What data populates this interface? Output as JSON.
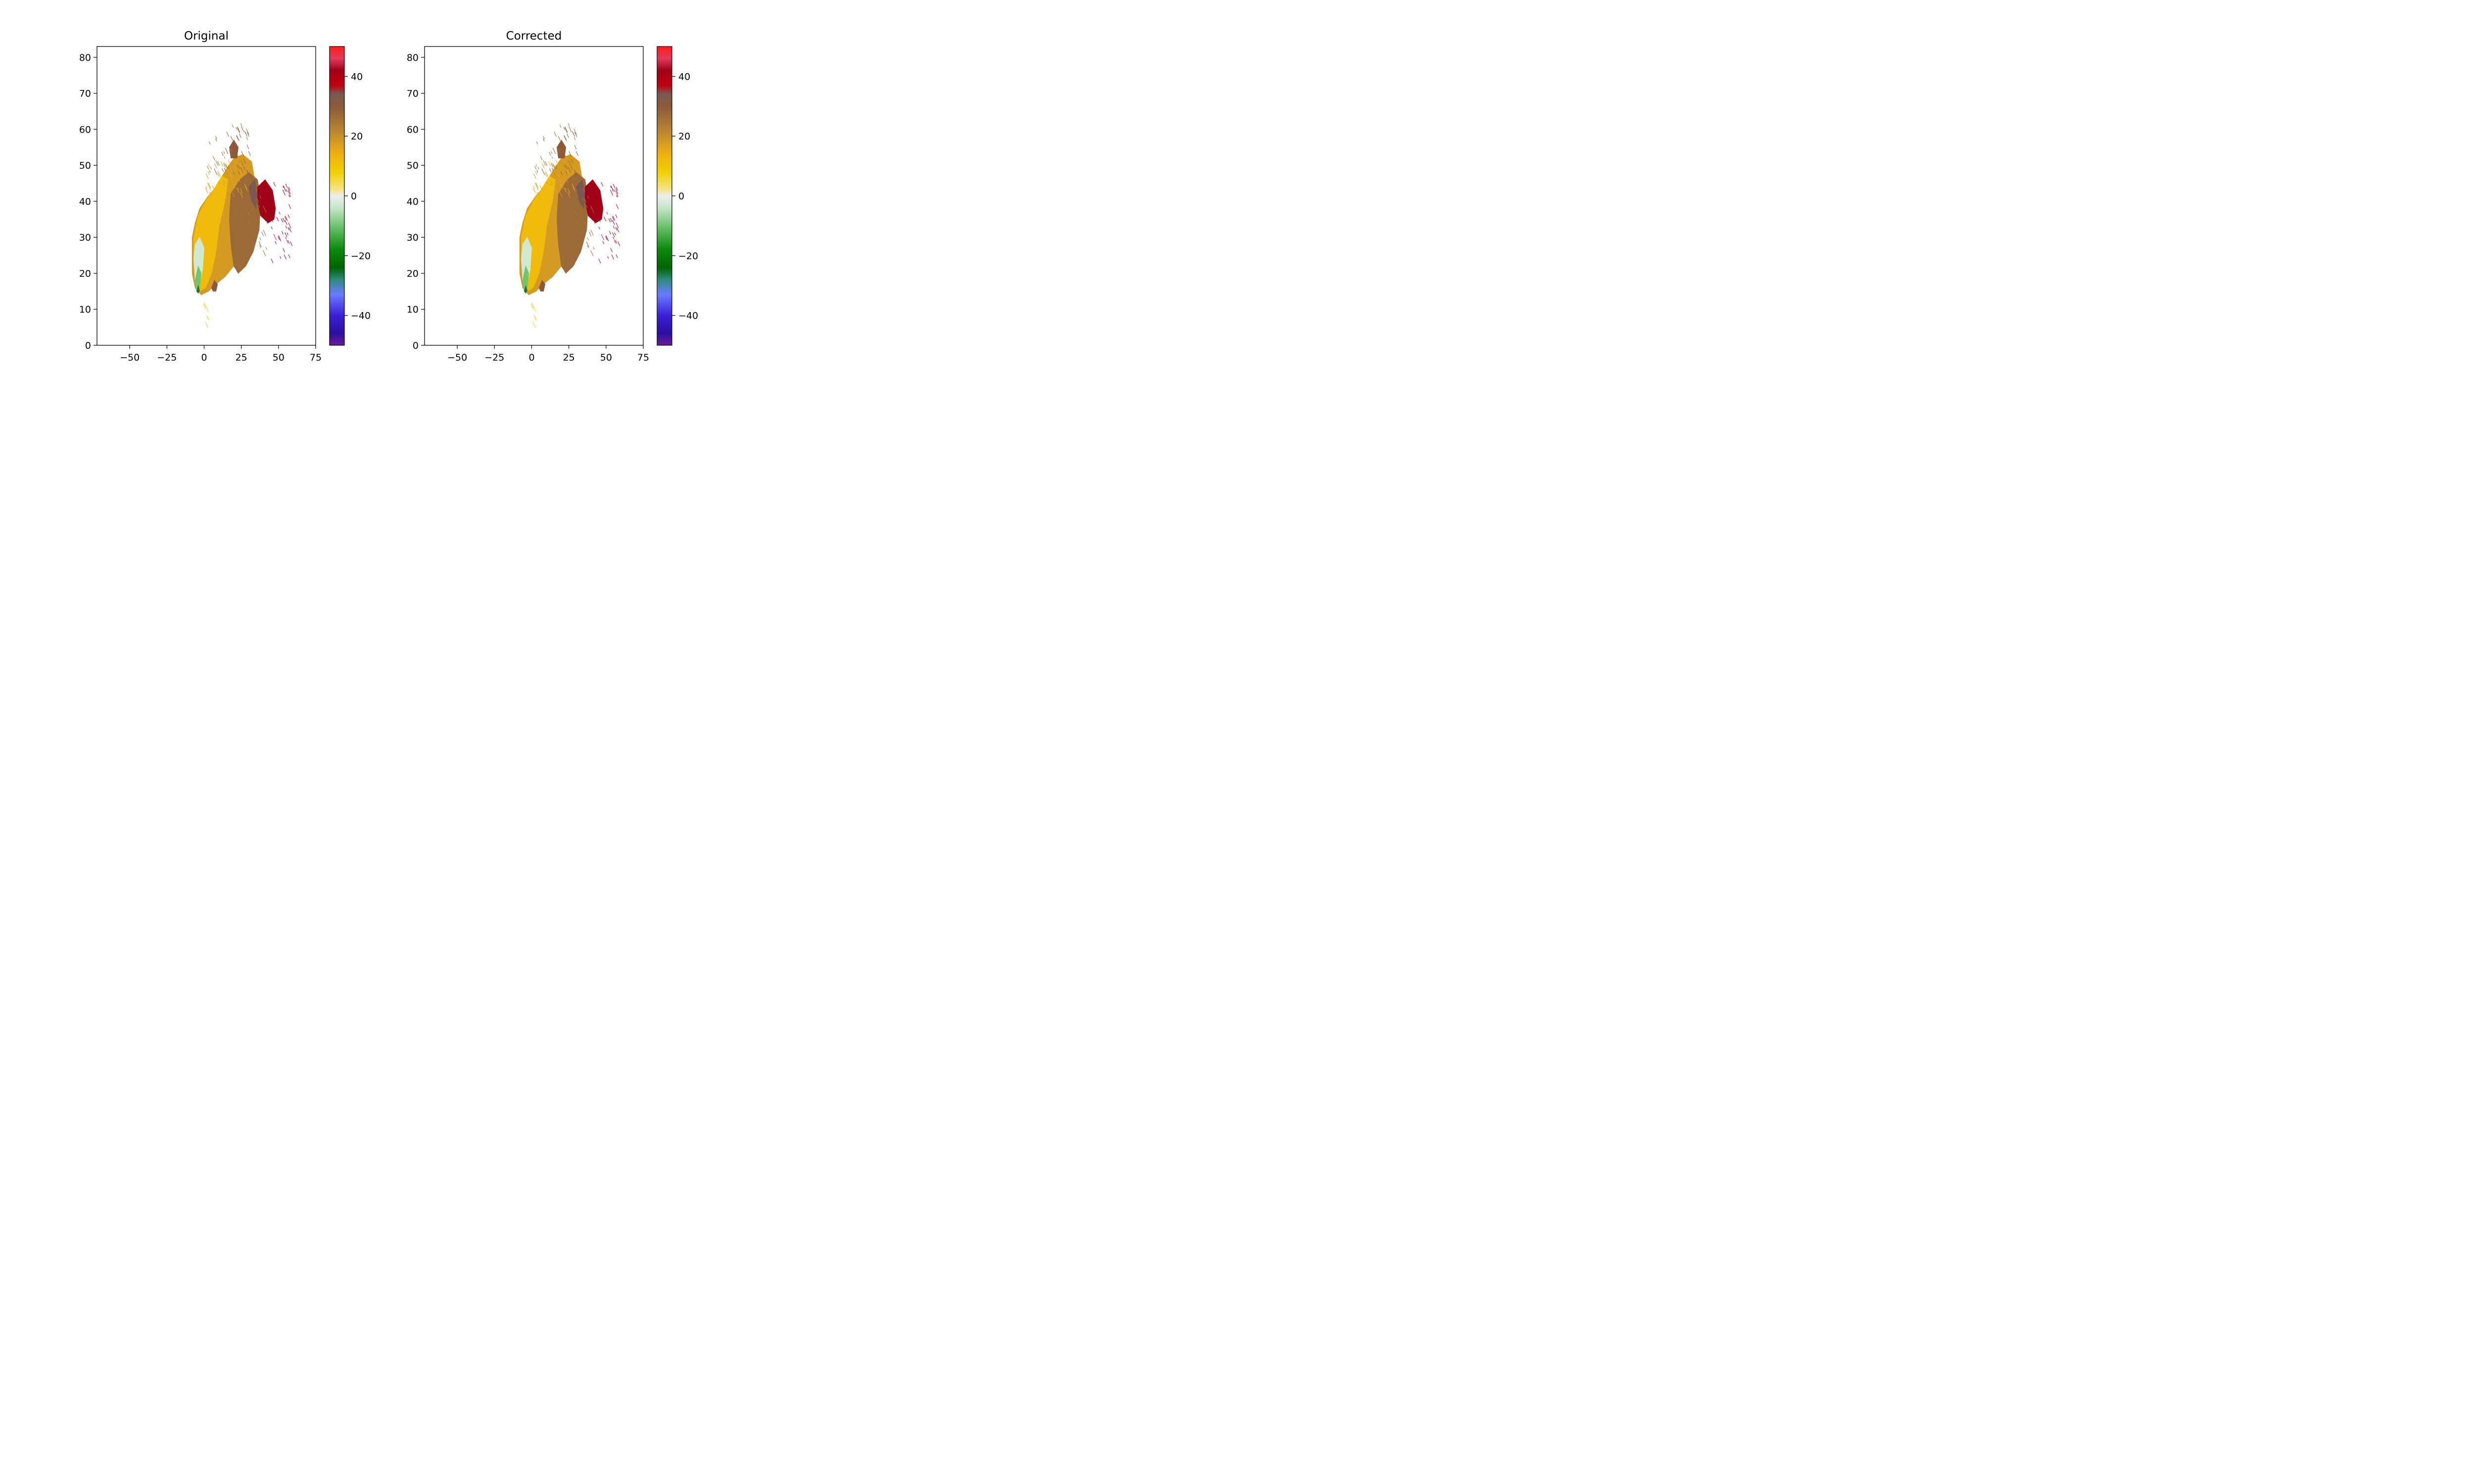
{
  "chart_data": [
    {
      "type": "heatmap",
      "title": "Original",
      "xlabel": "",
      "ylabel": "",
      "xlim": [
        -72,
        75
      ],
      "ylim": [
        0,
        83
      ],
      "xticks": [
        -50,
        -25,
        0,
        25,
        50,
        75
      ],
      "xtick_labels": [
        "−50",
        "−25",
        "0",
        "25",
        "50",
        "75"
      ],
      "yticks": [
        0,
        10,
        20,
        30,
        40,
        50,
        60,
        70,
        80
      ],
      "ytick_labels": [
        "0",
        "10",
        "20",
        "30",
        "40",
        "50",
        "60",
        "70",
        "80"
      ],
      "grid": false,
      "colorbar": {
        "range": [
          -50,
          50
        ],
        "ticks": [
          40,
          20,
          0,
          -20,
          -40
        ],
        "tick_labels": [
          "40",
          "20",
          "0",
          "−20",
          "−40"
        ]
      },
      "regions": [
        {
          "value": 18,
          "polygon": [
            [
              -8,
              30
            ],
            [
              -6,
              34
            ],
            [
              -3,
              38
            ],
            [
              2,
              41
            ],
            [
              8,
              44
            ],
            [
              15,
              49
            ],
            [
              20,
              52
            ],
            [
              26,
              53
            ],
            [
              32,
              51
            ],
            [
              34,
              46
            ],
            [
              32,
              40
            ],
            [
              28,
              33
            ],
            [
              25,
              28
            ],
            [
              20,
              22
            ],
            [
              14,
              19
            ],
            [
              8,
              17
            ],
            [
              3,
              15
            ],
            [
              -2,
              14
            ],
            [
              -6,
              16
            ],
            [
              -8,
              20
            ],
            [
              -8,
              26
            ]
          ]
        },
        {
          "value": 12,
          "polygon": [
            [
              -7,
              30
            ],
            [
              -4,
              36
            ],
            [
              1,
              40
            ],
            [
              6,
              43
            ],
            [
              12,
              47
            ],
            [
              16,
              46
            ],
            [
              14,
              40
            ],
            [
              10,
              33
            ],
            [
              8,
              26
            ],
            [
              5,
              20
            ],
            [
              1,
              16
            ],
            [
              -3,
              15
            ],
            [
              -6,
              18
            ],
            [
              -7,
              24
            ]
          ]
        },
        {
          "value": 27,
          "polygon": [
            [
              18,
              42
            ],
            [
              24,
              46
            ],
            [
              30,
              48
            ],
            [
              36,
              46
            ],
            [
              38,
              40
            ],
            [
              37,
              32
            ],
            [
              33,
              26
            ],
            [
              28,
              22
            ],
            [
              23,
              20
            ],
            [
              20,
              22
            ],
            [
              18,
              28
            ],
            [
              17,
              35
            ]
          ]
        },
        {
          "value": 34,
          "polygon": [
            [
              30,
              44
            ],
            [
              34,
              46
            ],
            [
              36,
              42
            ],
            [
              35,
              38
            ],
            [
              32,
              40
            ]
          ]
        },
        {
          "value": 42,
          "polygon": [
            [
              36,
              44
            ],
            [
              41,
              46
            ],
            [
              46,
              43
            ],
            [
              48,
              38
            ],
            [
              47,
              35
            ],
            [
              43,
              34
            ],
            [
              38,
              36
            ],
            [
              36,
              40
            ]
          ]
        },
        {
          "value": -3,
          "polygon": [
            [
              -7,
              24
            ],
            [
              -6,
              28
            ],
            [
              -3,
              30
            ],
            [
              0,
              27
            ],
            [
              -1,
              21
            ],
            [
              -3,
              17
            ],
            [
              -6,
              18
            ]
          ]
        },
        {
          "value": -10,
          "polygon": [
            [
              -6,
              18
            ],
            [
              -4,
              22
            ],
            [
              -2,
              20
            ],
            [
              -3,
              16
            ],
            [
              -5,
              15
            ]
          ]
        },
        {
          "value": -26,
          "polygon": [
            [
              -5,
              15
            ],
            [
              -4,
              16.5
            ],
            [
              -3,
              15.2
            ],
            [
              -4,
              14.5
            ]
          ]
        },
        {
          "value": 30,
          "polygon": [
            [
              17,
              55
            ],
            [
              20,
              57
            ],
            [
              23,
              55
            ],
            [
              22,
              52
            ],
            [
              18,
              52
            ]
          ]
        },
        {
          "value": 30,
          "polygon": [
            [
              5,
              16
            ],
            [
              7,
              18
            ],
            [
              9,
              17
            ],
            [
              8,
              15
            ],
            [
              6,
              15
            ]
          ]
        }
      ],
      "streaks": [
        {
          "value": 42,
          "x": [
            44,
            58
          ],
          "y": [
            24,
            46
          ],
          "count": 45
        },
        {
          "value": 28,
          "x": [
            2,
            30
          ],
          "y": [
            48,
            62
          ],
          "count": 55
        },
        {
          "value": 16,
          "x": [
            0,
            28
          ],
          "y": [
            42,
            52
          ],
          "count": 50
        },
        {
          "value": 26,
          "x": [
            28,
            42
          ],
          "y": [
            26,
            44
          ],
          "count": 30
        },
        {
          "value": 6,
          "x": [
            -2,
            4
          ],
          "y": [
            2,
            12
          ],
          "count": 8
        }
      ]
    },
    {
      "type": "heatmap",
      "title": "Corrected",
      "xlabel": "",
      "ylabel": "",
      "xlim": [
        -72,
        75
      ],
      "ylim": [
        0,
        83
      ],
      "xticks": [
        -50,
        -25,
        0,
        25,
        50,
        75
      ],
      "xtick_labels": [
        "−50",
        "−25",
        "0",
        "25",
        "50",
        "75"
      ],
      "yticks": [
        0,
        10,
        20,
        30,
        40,
        50,
        60,
        70,
        80
      ],
      "ytick_labels": [
        "0",
        "10",
        "20",
        "30",
        "40",
        "50",
        "60",
        "70",
        "80"
      ],
      "grid": false,
      "colorbar": {
        "range": [
          -50,
          50
        ],
        "ticks": [
          40,
          20,
          0,
          -20,
          -40
        ],
        "tick_labels": [
          "40",
          "20",
          "0",
          "−20",
          "−40"
        ]
      },
      "regions": [
        {
          "value": 18,
          "polygon": [
            [
              -8,
              30
            ],
            [
              -6,
              34
            ],
            [
              -3,
              38
            ],
            [
              2,
              41
            ],
            [
              8,
              44
            ],
            [
              15,
              49
            ],
            [
              20,
              52
            ],
            [
              26,
              53
            ],
            [
              32,
              51
            ],
            [
              34,
              46
            ],
            [
              32,
              40
            ],
            [
              28,
              33
            ],
            [
              25,
              28
            ],
            [
              20,
              22
            ],
            [
              14,
              19
            ],
            [
              8,
              17
            ],
            [
              3,
              15
            ],
            [
              -2,
              14
            ],
            [
              -6,
              16
            ],
            [
              -8,
              20
            ],
            [
              -8,
              26
            ]
          ]
        },
        {
          "value": 12,
          "polygon": [
            [
              -7,
              30
            ],
            [
              -4,
              36
            ],
            [
              1,
              40
            ],
            [
              6,
              43
            ],
            [
              12,
              47
            ],
            [
              16,
              46
            ],
            [
              14,
              40
            ],
            [
              10,
              33
            ],
            [
              8,
              26
            ],
            [
              5,
              20
            ],
            [
              1,
              16
            ],
            [
              -3,
              15
            ],
            [
              -6,
              18
            ],
            [
              -7,
              24
            ]
          ]
        },
        {
          "value": 27,
          "polygon": [
            [
              18,
              42
            ],
            [
              24,
              46
            ],
            [
              30,
              48
            ],
            [
              36,
              46
            ],
            [
              38,
              40
            ],
            [
              37,
              32
            ],
            [
              33,
              26
            ],
            [
              28,
              22
            ],
            [
              23,
              20
            ],
            [
              20,
              22
            ],
            [
              18,
              28
            ],
            [
              17,
              35
            ]
          ]
        },
        {
          "value": 34,
          "polygon": [
            [
              30,
              44
            ],
            [
              34,
              46
            ],
            [
              36,
              42
            ],
            [
              35,
              38
            ],
            [
              32,
              40
            ]
          ]
        },
        {
          "value": 42,
          "polygon": [
            [
              36,
              44
            ],
            [
              41,
              46
            ],
            [
              46,
              43
            ],
            [
              48,
              38
            ],
            [
              47,
              35
            ],
            [
              43,
              34
            ],
            [
              38,
              36
            ],
            [
              36,
              40
            ]
          ]
        },
        {
          "value": -3,
          "polygon": [
            [
              -7,
              24
            ],
            [
              -6,
              28
            ],
            [
              -3,
              30
            ],
            [
              0,
              27
            ],
            [
              -1,
              21
            ],
            [
              -3,
              17
            ],
            [
              -6,
              18
            ]
          ]
        },
        {
          "value": -10,
          "polygon": [
            [
              -6,
              18
            ],
            [
              -4,
              22
            ],
            [
              -2,
              20
            ],
            [
              -3,
              16
            ],
            [
              -5,
              15
            ]
          ]
        },
        {
          "value": -26,
          "polygon": [
            [
              -5,
              15
            ],
            [
              -4,
              16.5
            ],
            [
              -3,
              15.2
            ],
            [
              -4,
              14.5
            ]
          ]
        },
        {
          "value": 30,
          "polygon": [
            [
              17,
              55
            ],
            [
              20,
              57
            ],
            [
              23,
              55
            ],
            [
              22,
              52
            ],
            [
              18,
              52
            ]
          ]
        },
        {
          "value": 30,
          "polygon": [
            [
              5,
              16
            ],
            [
              7,
              18
            ],
            [
              9,
              17
            ],
            [
              8,
              15
            ],
            [
              6,
              15
            ]
          ]
        }
      ],
      "streaks": [
        {
          "value": 42,
          "x": [
            44,
            58
          ],
          "y": [
            24,
            46
          ],
          "count": 45
        },
        {
          "value": 28,
          "x": [
            2,
            30
          ],
          "y": [
            48,
            62
          ],
          "count": 55
        },
        {
          "value": 16,
          "x": [
            0,
            28
          ],
          "y": [
            42,
            52
          ],
          "count": 50
        },
        {
          "value": 26,
          "x": [
            28,
            42
          ],
          "y": [
            26,
            44
          ],
          "count": 30
        },
        {
          "value": 6,
          "x": [
            -2,
            4
          ],
          "y": [
            2,
            12
          ],
          "count": 8
        }
      ]
    }
  ],
  "colormap": {
    "stops": [
      {
        "value": -50,
        "color": "#6a1b9a"
      },
      {
        "value": -46,
        "color": "#2b0fa0"
      },
      {
        "value": -40,
        "color": "#3a1fd8"
      },
      {
        "value": -33,
        "color": "#6a7cff"
      },
      {
        "value": -28,
        "color": "#2e8a7a"
      },
      {
        "value": -24,
        "color": "#006400"
      },
      {
        "value": -18,
        "color": "#0a8a0a"
      },
      {
        "value": -10,
        "color": "#6fc46f"
      },
      {
        "value": -4,
        "color": "#c6e6c8"
      },
      {
        "value": 0,
        "color": "#eeeeee"
      },
      {
        "value": 2,
        "color": "#f6e58a"
      },
      {
        "value": 8,
        "color": "#f0d000"
      },
      {
        "value": 14,
        "color": "#f0b010"
      },
      {
        "value": 22,
        "color": "#b88432"
      },
      {
        "value": 30,
        "color": "#8a5a3a"
      },
      {
        "value": 34,
        "color": "#7a5a50"
      },
      {
        "value": 37,
        "color": "#c00010"
      },
      {
        "value": 42,
        "color": "#a00018"
      },
      {
        "value": 46,
        "color": "#e23a5a"
      },
      {
        "value": 50,
        "color": "#ff1a1a"
      }
    ]
  }
}
